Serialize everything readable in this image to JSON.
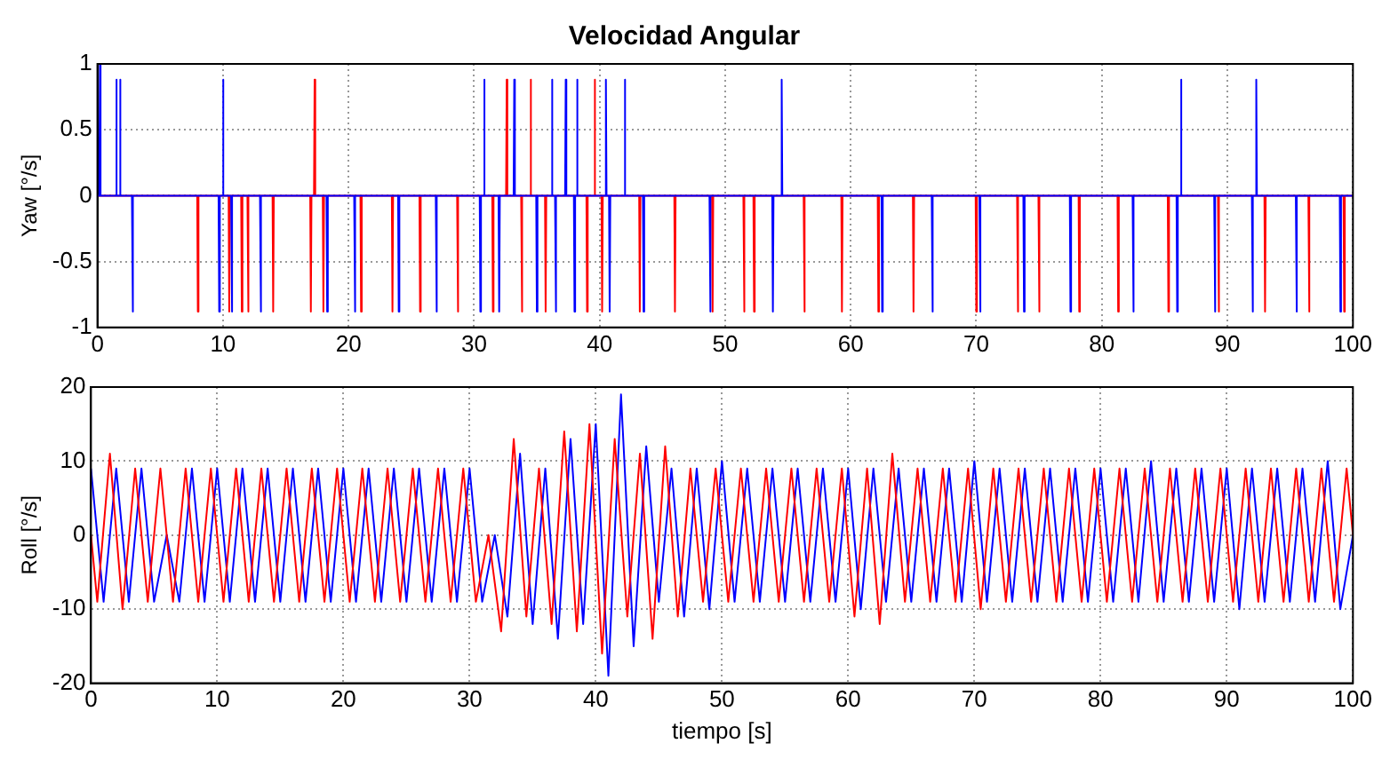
{
  "chart_data": [
    {
      "type": "line",
      "title": "Velocidad Angular",
      "ylabel": "Yaw [°/s]",
      "xlim": [
        0,
        100
      ],
      "xticks": [
        0,
        10,
        20,
        30,
        40,
        50,
        60,
        70,
        80,
        90,
        100
      ],
      "ylim": [
        -1,
        1
      ],
      "yticks": [
        -1,
        -0.5,
        0,
        0.5,
        1
      ],
      "grid": true,
      "marker": "none",
      "series": [
        {
          "color": "#0000ff",
          "x": [
            0,
            0.15,
            0.2,
            0.25,
            1.45,
            1.5,
            1.55,
            1.75,
            1.8,
            1.85,
            2.75,
            2.8,
            2.85,
            9.65,
            9.7,
            9.75,
            9.95,
            10,
            10.05,
            10.65,
            10.7,
            10.75,
            12.95,
            13,
            13.05,
            18.25,
            18.3,
            18.35,
            20.45,
            20.5,
            20.55,
            23.95,
            24,
            24.05,
            26.95,
            27,
            27.05,
            30.45,
            30.5,
            30.55,
            30.75,
            30.8,
            30.85,
            31.95,
            32,
            32.05,
            33.15,
            33.2,
            33.25,
            34.95,
            35,
            35.05,
            36.15,
            36.2,
            36.25,
            36.45,
            36.5,
            36.55,
            37.25,
            37.3,
            37.35,
            37.95,
            38,
            38.05,
            38.15,
            38.2,
            38.25,
            40.45,
            40.5,
            40.55,
            40.75,
            40.8,
            40.85,
            41.95,
            42,
            42.05,
            43.45,
            43.5,
            43.55,
            48.75,
            48.8,
            48.85,
            53.75,
            53.8,
            53.85,
            54.45,
            54.5,
            54.55,
            62.45,
            62.5,
            62.55,
            66.45,
            66.5,
            66.55,
            70.25,
            70.3,
            70.35,
            73.75,
            73.8,
            73.85,
            77.45,
            77.5,
            77.55,
            82.45,
            82.5,
            82.55,
            85.95,
            86,
            86.05,
            86.25,
            86.3,
            86.35,
            88.95,
            89,
            89.05,
            91.95,
            92,
            92.05,
            92.25,
            92.3,
            92.35,
            95.45,
            95.5,
            95.55,
            98.95,
            99,
            99.05,
            100
          ],
          "values": [
            0,
            0,
            1,
            0,
            0,
            0.88,
            0,
            0,
            0.88,
            0,
            0,
            -0.88,
            0,
            0,
            -0.88,
            0,
            0,
            0.88,
            0,
            0,
            -0.88,
            0,
            0,
            -0.88,
            0,
            0,
            -0.88,
            0,
            0,
            -0.88,
            0,
            0,
            -0.88,
            0,
            0,
            -0.88,
            0,
            0,
            -0.88,
            0,
            0,
            0.88,
            0,
            0,
            -0.88,
            0,
            0,
            0.88,
            0,
            0,
            -0.88,
            0,
            0,
            0.88,
            0,
            0,
            -0.88,
            0,
            0,
            0.88,
            0,
            0,
            -0.88,
            0,
            0,
            0.88,
            0,
            0,
            0.88,
            0,
            0,
            -0.88,
            0,
            0,
            0.88,
            0,
            0,
            -0.88,
            0,
            0,
            -0.88,
            0,
            0,
            -0.88,
            0,
            0,
            0.88,
            0,
            0,
            -0.88,
            0,
            0,
            -0.88,
            0,
            0,
            -0.88,
            0,
            0,
            -0.88,
            0,
            0,
            -0.88,
            0,
            0,
            -0.88,
            0,
            0,
            -0.88,
            0,
            0,
            0.88,
            0,
            0,
            -0.88,
            0,
            0,
            -0.88,
            0,
            0,
            0.88,
            0,
            0,
            -0.88,
            0,
            0,
            -0.88,
            0,
            0
          ]
        },
        {
          "color": "#ff0000",
          "x": [
            0,
            7.95,
            8,
            8.05,
            10.45,
            10.5,
            10.55,
            11.45,
            11.5,
            11.55,
            11.95,
            12,
            12.05,
            13.95,
            14,
            14.05,
            16.95,
            17,
            17.05,
            17.25,
            17.3,
            17.35,
            17.95,
            18,
            18.05,
            20.95,
            21,
            21.05,
            23.45,
            23.5,
            23.55,
            25.65,
            25.7,
            25.75,
            28.65,
            28.7,
            28.75,
            31.45,
            31.5,
            31.55,
            32.55,
            32.6,
            32.65,
            33.75,
            33.8,
            33.85,
            34.45,
            34.5,
            34.55,
            35.65,
            35.7,
            35.75,
            38.95,
            39,
            39.05,
            39.55,
            39.6,
            39.65,
            40.15,
            40.2,
            40.25,
            43.15,
            43.2,
            43.25,
            45.95,
            46,
            46.05,
            48.95,
            49,
            49.05,
            51.45,
            51.5,
            51.55,
            52.25,
            52.3,
            52.35,
            56.25,
            56.3,
            56.35,
            59.25,
            59.3,
            59.35,
            62.15,
            62.2,
            62.25,
            64.95,
            65,
            65.05,
            69.95,
            70,
            70.05,
            73.25,
            73.3,
            73.35,
            74.95,
            75,
            75.05,
            78.15,
            78.2,
            78.25,
            81.25,
            81.3,
            81.35,
            85.25,
            85.3,
            85.35,
            89.25,
            89.3,
            89.35,
            92.95,
            93,
            93.05,
            96.45,
            96.5,
            96.55,
            99.25,
            99.3,
            99.35,
            100
          ],
          "values": [
            0,
            0,
            -0.88,
            0,
            0,
            -0.88,
            0,
            0,
            -0.88,
            0,
            0,
            -0.88,
            0,
            0,
            -0.88,
            0,
            0,
            -0.88,
            0,
            0,
            0.88,
            0,
            0,
            -0.88,
            0,
            0,
            -0.88,
            0,
            0,
            -0.88,
            0,
            0,
            -0.88,
            0,
            0,
            -0.88,
            0,
            0,
            -0.88,
            0,
            0,
            0.88,
            0,
            0,
            -0.88,
            0,
            0,
            0.88,
            0,
            0,
            -0.88,
            0,
            0,
            -0.88,
            0,
            0,
            0.88,
            0,
            0,
            -0.88,
            0,
            0,
            -0.88,
            0,
            0,
            -0.88,
            0,
            0,
            -0.88,
            0,
            0,
            -0.88,
            0,
            0,
            -0.88,
            0,
            0,
            -0.88,
            0,
            0,
            -0.88,
            0,
            0,
            -0.88,
            0,
            0,
            -0.88,
            0,
            0,
            -0.88,
            0,
            0,
            -0.88,
            0,
            0,
            -0.88,
            0,
            0,
            -0.88,
            0,
            0,
            -0.88,
            0,
            0,
            -0.88,
            0,
            0,
            -0.88,
            0,
            0,
            -0.88,
            0,
            0,
            -0.88,
            0,
            0,
            -0.88,
            0,
            0
          ]
        }
      ]
    },
    {
      "type": "line",
      "xlabel": "tiempo [s]",
      "ylabel": "Roll [°/s]",
      "xlim": [
        0,
        100
      ],
      "xticks": [
        0,
        10,
        20,
        30,
        40,
        50,
        60,
        70,
        80,
        90,
        100
      ],
      "ylim": [
        -20,
        20
      ],
      "yticks": [
        -20,
        -10,
        0,
        10,
        20
      ],
      "grid": true,
      "marker": "none",
      "series": [
        {
          "color": "#ff0000",
          "x": [
            0,
            0.5,
            1.5,
            2.5,
            3.5,
            4.5,
            5.5,
            6.5,
            7.5,
            8.5,
            9.5,
            10.5,
            11.5,
            12.5,
            13.5,
            14.5,
            15.5,
            16.5,
            17.5,
            18.5,
            19.5,
            20.5,
            21.5,
            22.5,
            23.5,
            24.5,
            25.5,
            26.5,
            27.5,
            28.5,
            29.5,
            30.5,
            31.5,
            32.5,
            33.5,
            34.5,
            35.5,
            36.5,
            37.5,
            38.5,
            39.5,
            40.5,
            41.5,
            42.5,
            43.5,
            44.5,
            45.5,
            46.5,
            47.5,
            48.5,
            49.5,
            50.5,
            51.5,
            52.5,
            53.5,
            54.5,
            55.5,
            56.5,
            57.5,
            58.5,
            59.5,
            60.5,
            61.5,
            62.5,
            63.5,
            64.5,
            65.5,
            66.5,
            67.5,
            68.5,
            69.5,
            70.5,
            71.5,
            72.5,
            73.5,
            74.5,
            75.5,
            76.5,
            77.5,
            78.5,
            79.5,
            80.5,
            81.5,
            82.5,
            83.5,
            84.5,
            85.5,
            86.5,
            87.5,
            88.5,
            89.5,
            90.5,
            91.5,
            92.5,
            93.5,
            94.5,
            95.5,
            96.5,
            97.5,
            98.5,
            99.5,
            100
          ],
          "values": [
            0,
            -9,
            11,
            -10,
            9,
            -9,
            9,
            -9,
            9,
            -9,
            9,
            -9,
            9,
            -9,
            9,
            -9,
            9,
            -9,
            9,
            -9,
            9,
            -9,
            9,
            -9,
            9,
            -9,
            9,
            -9,
            9,
            -9,
            9,
            -9,
            0,
            -13,
            13,
            -11,
            9,
            -12,
            14,
            -13,
            15,
            -16,
            13,
            -11,
            11,
            -14,
            12,
            -11,
            9,
            -9,
            9,
            -9,
            9,
            -9,
            9,
            -9,
            9,
            -9,
            9,
            -9,
            9,
            -11,
            9,
            -12,
            11,
            -9,
            9,
            -9,
            9,
            -9,
            9,
            -10,
            9,
            -9,
            9,
            -9,
            9,
            -9,
            9,
            -9,
            9,
            -9,
            9,
            -9,
            9,
            -9,
            9,
            -9,
            9,
            -9,
            9,
            -9,
            9,
            -9,
            9,
            -9,
            9,
            -9,
            9,
            -9,
            9,
            0
          ]
        },
        {
          "color": "#0000ff",
          "x": [
            0,
            1,
            2,
            3,
            4,
            5,
            6,
            7,
            8,
            9,
            10,
            11,
            12,
            13,
            14,
            15,
            16,
            17,
            18,
            19,
            20,
            21,
            22,
            23,
            24,
            25,
            26,
            27,
            28,
            29,
            30,
            31,
            32,
            33,
            34,
            35,
            36,
            37,
            38,
            39,
            40,
            41,
            42,
            43,
            44,
            45,
            46,
            47,
            48,
            49,
            50,
            51,
            52,
            53,
            54,
            55,
            56,
            57,
            58,
            59,
            60,
            61,
            62,
            63,
            64,
            65,
            66,
            67,
            68,
            69,
            70,
            71,
            72,
            73,
            74,
            75,
            76,
            77,
            78,
            79,
            80,
            81,
            82,
            83,
            84,
            85,
            86,
            87,
            88,
            89,
            90,
            91,
            92,
            93,
            94,
            95,
            96,
            97,
            98,
            99,
            100
          ],
          "values": [
            9,
            -9,
            9,
            -9,
            9,
            -9,
            0,
            -9,
            9,
            -9,
            9,
            -9,
            9,
            -9,
            9,
            -9,
            9,
            -9,
            9,
            -9,
            9,
            -9,
            9,
            -9,
            9,
            -9,
            9,
            -9,
            9,
            -9,
            9,
            -9,
            0,
            -11,
            11,
            -12,
            9,
            -14,
            13,
            -12,
            15,
            -19,
            19,
            -15,
            12,
            -9,
            9,
            -11,
            9,
            -10,
            10,
            -9,
            9,
            -9,
            9,
            -9,
            9,
            -9,
            9,
            -9,
            9,
            -10,
            9,
            -9,
            9,
            -9,
            9,
            -9,
            9,
            -9,
            10,
            -9,
            9,
            -9,
            9,
            -9,
            9,
            -9,
            9,
            -9,
            9,
            -9,
            9,
            -9,
            10,
            -9,
            9,
            -9,
            9,
            -9,
            9,
            -10,
            9,
            -9,
            9,
            -9,
            9,
            -9,
            10,
            -10,
            0
          ]
        }
      ]
    }
  ]
}
